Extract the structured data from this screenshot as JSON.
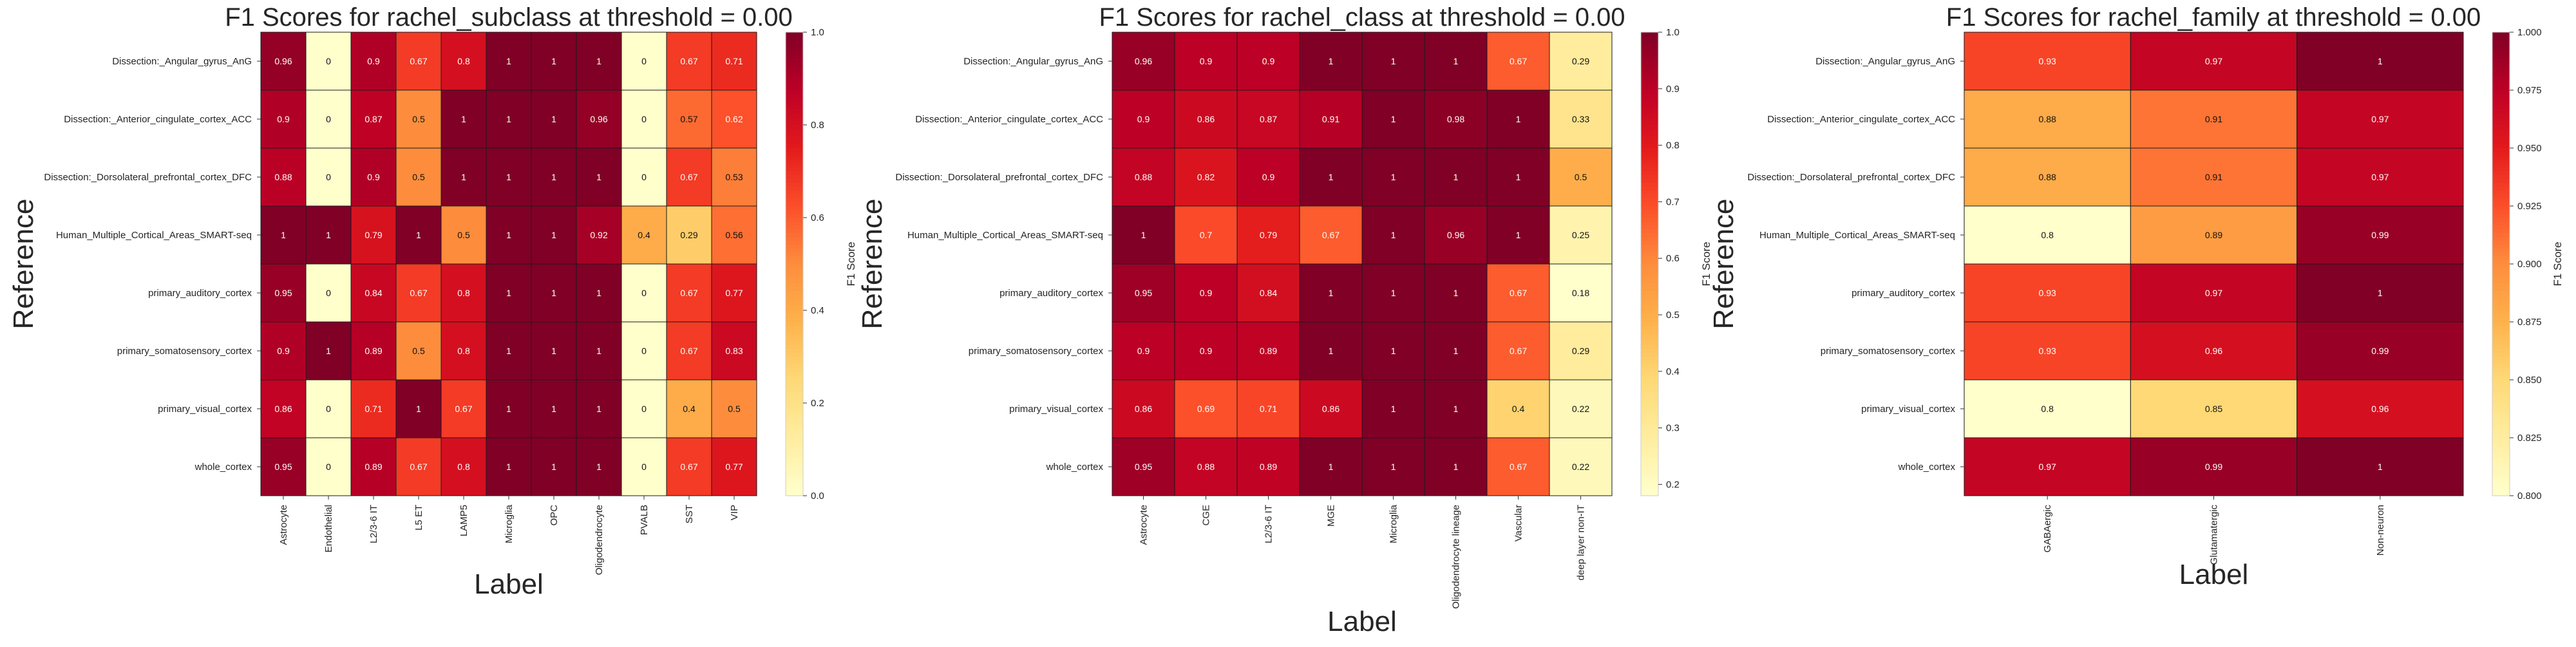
{
  "colormap": {
    "name": "YlOrRd",
    "stops": [
      "#ffffcc",
      "#ffeda0",
      "#fed976",
      "#feb24c",
      "#fd8d3c",
      "#fc4e2a",
      "#e31a1c",
      "#bd0026",
      "#800026"
    ]
  },
  "chart_data": [
    {
      "type": "heatmap",
      "title": "F1 Scores for rachel_subclass at threshold = 0.00",
      "xlabel": "Label",
      "ylabel": "Reference",
      "colorbar_label": "F1 Score",
      "vmin": 0.0,
      "vmax": 1.0,
      "colorbar_ticks": [
        "0.0",
        "0.2",
        "0.4",
        "0.6",
        "0.8",
        "1.0"
      ],
      "rows": [
        "Dissection:_Angular_gyrus_AnG",
        "Dissection:_Anterior_cingulate_cortex_ACC",
        "Dissection:_Dorsolateral_prefrontal_cortex_DFC",
        "Human_Multiple_Cortical_Areas_SMART-seq",
        "primary_auditory_cortex",
        "primary_somatosensory_cortex",
        "primary_visual_cortex",
        "whole_cortex"
      ],
      "columns": [
        "Astrocyte",
        "Endothelial",
        "L2/3-6 IT",
        "L5 ET",
        "LAMP5",
        "Microglia",
        "OPC",
        "Oligodendrocyte",
        "PVALB",
        "SST",
        "VIP"
      ],
      "values": [
        [
          0.96,
          0,
          0.9,
          0.67,
          0.8,
          1,
          1,
          1,
          0,
          0.67,
          0.71
        ],
        [
          0.9,
          0,
          0.87,
          0.5,
          1,
          1,
          1,
          0.96,
          0,
          0.57,
          0.62
        ],
        [
          0.88,
          0,
          0.9,
          0.5,
          1,
          1,
          1,
          1,
          0,
          0.67,
          0.53
        ],
        [
          1,
          1,
          0.79,
          1,
          0.5,
          1,
          1,
          0.92,
          0.4,
          0.29,
          0.56
        ],
        [
          0.95,
          0,
          0.84,
          0.67,
          0.8,
          1,
          1,
          1,
          0,
          0.67,
          0.77
        ],
        [
          0.9,
          1,
          0.89,
          0.5,
          0.8,
          1,
          1,
          1,
          0,
          0.67,
          0.83
        ],
        [
          0.86,
          0,
          0.71,
          1,
          0.67,
          1,
          1,
          1,
          0,
          0.4,
          0.5
        ],
        [
          0.95,
          0,
          0.89,
          0.67,
          0.8,
          1,
          1,
          1,
          0,
          0.67,
          0.77
        ]
      ]
    },
    {
      "type": "heatmap",
      "title": "F1 Scores for rachel_class at threshold = 0.00",
      "xlabel": "Label",
      "ylabel": "Reference",
      "colorbar_label": "F1 Score",
      "vmin": 0.18,
      "vmax": 1.0,
      "colorbar_ticks": [
        "0.2",
        "0.3",
        "0.4",
        "0.5",
        "0.6",
        "0.7",
        "0.8",
        "0.9",
        "1.0"
      ],
      "rows": [
        "Dissection:_Angular_gyrus_AnG",
        "Dissection:_Anterior_cingulate_cortex_ACC",
        "Dissection:_Dorsolateral_prefrontal_cortex_DFC",
        "Human_Multiple_Cortical_Areas_SMART-seq",
        "primary_auditory_cortex",
        "primary_somatosensory_cortex",
        "primary_visual_cortex",
        "whole_cortex"
      ],
      "columns": [
        "Astrocyte",
        "CGE",
        "L2/3-6 IT",
        "MGE",
        "Microglia",
        "Oligodendrocyte lineage",
        "Vascular",
        "deep layer non-IT"
      ],
      "values": [
        [
          0.96,
          0.9,
          0.9,
          1,
          1,
          1,
          0.67,
          0.29
        ],
        [
          0.9,
          0.86,
          0.87,
          0.91,
          1,
          0.98,
          1,
          0.33
        ],
        [
          0.88,
          0.82,
          0.9,
          1,
          1,
          1,
          1,
          0.5
        ],
        [
          1,
          0.7,
          0.79,
          0.67,
          1,
          0.96,
          1,
          0.25
        ],
        [
          0.95,
          0.9,
          0.84,
          1,
          1,
          1,
          0.67,
          0.18
        ],
        [
          0.9,
          0.9,
          0.89,
          1,
          1,
          1,
          0.67,
          0.29
        ],
        [
          0.86,
          0.69,
          0.71,
          0.86,
          1,
          1,
          0.4,
          0.22
        ],
        [
          0.95,
          0.88,
          0.89,
          1,
          1,
          1,
          0.67,
          0.22
        ]
      ]
    },
    {
      "type": "heatmap",
      "title": "F1 Scores for rachel_family at threshold = 0.00",
      "xlabel": "Label",
      "ylabel": "Reference",
      "colorbar_label": "F1 Score",
      "vmin": 0.8,
      "vmax": 1.0,
      "colorbar_ticks": [
        "0.800",
        "0.825",
        "0.850",
        "0.875",
        "0.900",
        "0.925",
        "0.950",
        "0.975",
        "1.000"
      ],
      "rows": [
        "Dissection:_Angular_gyrus_AnG",
        "Dissection:_Anterior_cingulate_cortex_ACC",
        "Dissection:_Dorsolateral_prefrontal_cortex_DFC",
        "Human_Multiple_Cortical_Areas_SMART-seq",
        "primary_auditory_cortex",
        "primary_somatosensory_cortex",
        "primary_visual_cortex",
        "whole_cortex"
      ],
      "columns": [
        "GABAergic",
        "Glutamatergic",
        "Non-neuron"
      ],
      "values": [
        [
          0.93,
          0.97,
          1
        ],
        [
          0.88,
          0.91,
          0.97
        ],
        [
          0.88,
          0.91,
          0.97
        ],
        [
          0.8,
          0.89,
          0.99
        ],
        [
          0.93,
          0.97,
          1
        ],
        [
          0.93,
          0.96,
          0.99
        ],
        [
          0.8,
          0.85,
          0.96
        ],
        [
          0.97,
          0.99,
          1
        ]
      ]
    }
  ]
}
